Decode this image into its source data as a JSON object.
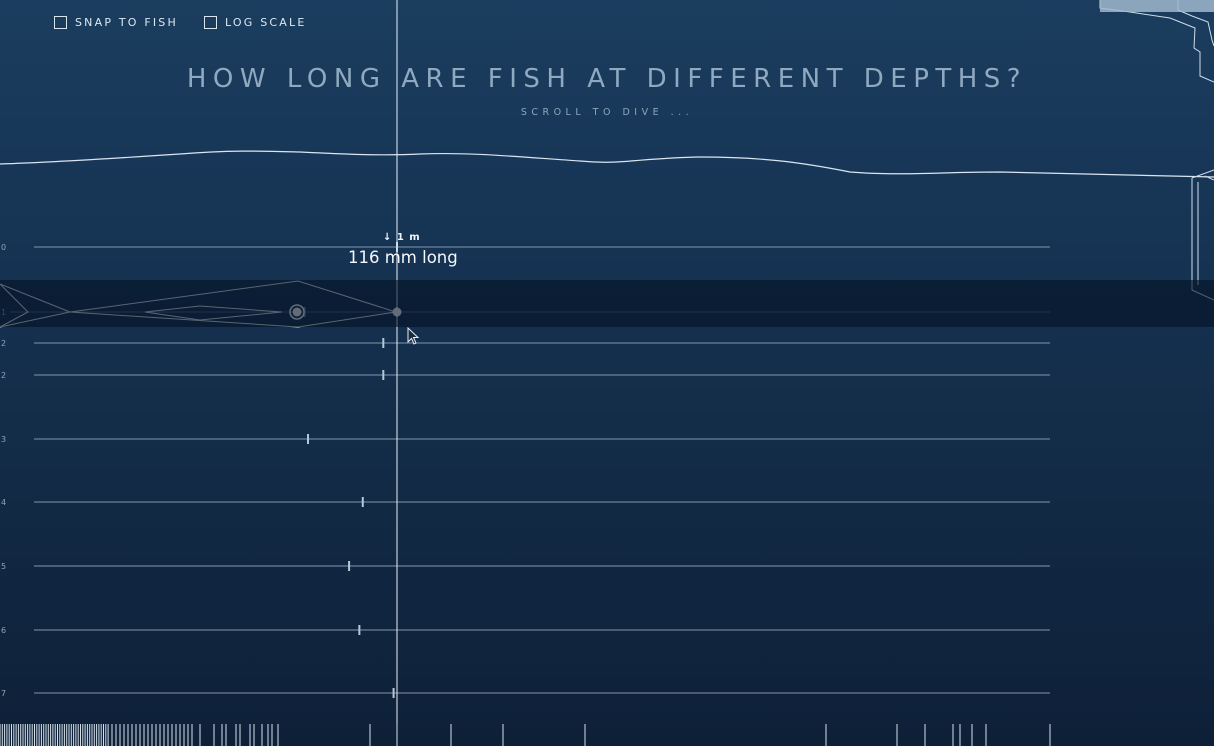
{
  "controls": {
    "snap_label": "SNAP TO FISH",
    "log_label": "LOG SCALE",
    "snap_checked": false,
    "log_checked": false
  },
  "header": {
    "title": "HOW LONG ARE FISH AT DIFFERENT DEPTHS?",
    "subtitle": "SCROLL TO DIVE ..."
  },
  "tooltip": {
    "depth": "↓ 1 m",
    "length": "116 mm long"
  },
  "colors": {
    "line": "#7f97ad",
    "highlight": "#ffffff",
    "band": "#03121f"
  },
  "chart_data": {
    "type": "scatter",
    "rows": [
      {
        "label": "0",
        "marks": [
          116
        ]
      },
      {
        "label": "1",
        "marks": [
          116,
          89
        ]
      },
      {
        "label": "2",
        "marks": [
          112
        ]
      },
      {
        "label": "2",
        "marks": [
          112
        ]
      },
      {
        "label": "3",
        "marks": [
          90
        ]
      },
      {
        "label": "4",
        "marks": [
          106
        ]
      },
      {
        "label": "5",
        "marks": [
          102
        ]
      },
      {
        "label": "6",
        "marks": [
          105
        ]
      },
      {
        "label": "7",
        "marks": [
          115
        ]
      }
    ],
    "selected": {
      "depth": 1,
      "length_mm": 116
    }
  }
}
